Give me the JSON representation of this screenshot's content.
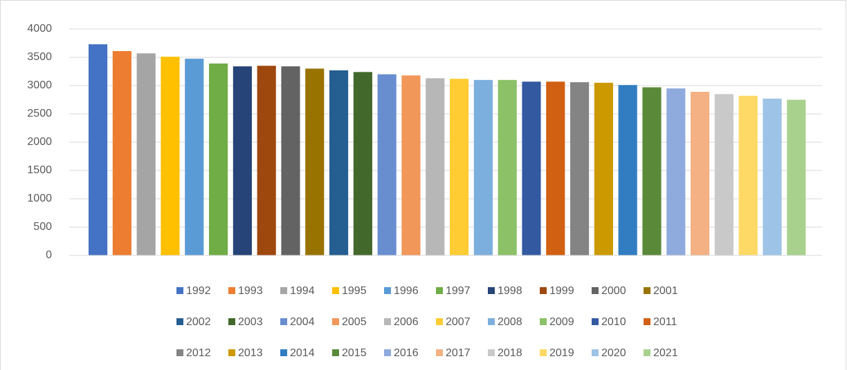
{
  "chart_data": {
    "type": "bar",
    "categories": [
      null
    ],
    "series": [
      {
        "name": "1992",
        "color": "#4472C4",
        "values": [
          3730
        ]
      },
      {
        "name": "1993",
        "color": "#ED7D31",
        "values": [
          3610
        ]
      },
      {
        "name": "1994",
        "color": "#A5A5A5",
        "values": [
          3570
        ]
      },
      {
        "name": "1995",
        "color": "#FFC000",
        "values": [
          3510
        ]
      },
      {
        "name": "1996",
        "color": "#5B9BD5",
        "values": [
          3475
        ]
      },
      {
        "name": "1997",
        "color": "#70AD47",
        "values": [
          3390
        ]
      },
      {
        "name": "1998",
        "color": "#264478",
        "values": [
          3340
        ]
      },
      {
        "name": "1999",
        "color": "#9E480E",
        "values": [
          3350
        ]
      },
      {
        "name": "2000",
        "color": "#636363",
        "values": [
          3340
        ]
      },
      {
        "name": "2001",
        "color": "#997300",
        "values": [
          3300
        ]
      },
      {
        "name": "2002",
        "color": "#255E91",
        "values": [
          3270
        ]
      },
      {
        "name": "2003",
        "color": "#43682B",
        "values": [
          3240
        ]
      },
      {
        "name": "2004",
        "color": "#698ED0",
        "values": [
          3200
        ]
      },
      {
        "name": "2005",
        "color": "#F1975A",
        "values": [
          3180
        ]
      },
      {
        "name": "2006",
        "color": "#B7B7B7",
        "values": [
          3130
        ]
      },
      {
        "name": "2007",
        "color": "#FFCD33",
        "values": [
          3120
        ]
      },
      {
        "name": "2008",
        "color": "#7CAFDD",
        "values": [
          3100
        ]
      },
      {
        "name": "2009",
        "color": "#8CC168",
        "values": [
          3100
        ]
      },
      {
        "name": "2010",
        "color": "#335AA1",
        "values": [
          3070
        ]
      },
      {
        "name": "2011",
        "color": "#D26012",
        "values": [
          3070
        ]
      },
      {
        "name": "2012",
        "color": "#848484",
        "values": [
          3060
        ]
      },
      {
        "name": "2013",
        "color": "#CC9A00",
        "values": [
          3050
        ]
      },
      {
        "name": "2014",
        "color": "#327DC2",
        "values": [
          3010
        ]
      },
      {
        "name": "2015",
        "color": "#5A8A39",
        "values": [
          2970
        ]
      },
      {
        "name": "2016",
        "color": "#8FAADC",
        "values": [
          2950
        ]
      },
      {
        "name": "2017",
        "color": "#F4B183",
        "values": [
          2890
        ]
      },
      {
        "name": "2018",
        "color": "#C9C9C9",
        "values": [
          2850
        ]
      },
      {
        "name": "2019",
        "color": "#FFD966",
        "values": [
          2820
        ]
      },
      {
        "name": "2020",
        "color": "#9DC3E6",
        "values": [
          2770
        ]
      },
      {
        "name": "2021",
        "color": "#A9D18E",
        "values": [
          2750
        ]
      }
    ],
    "ylim": [
      0,
      4000
    ],
    "yticks": [
      0,
      500,
      1000,
      1500,
      2000,
      2500,
      3000,
      3500,
      4000
    ],
    "grid": true,
    "legend": "bottom"
  }
}
